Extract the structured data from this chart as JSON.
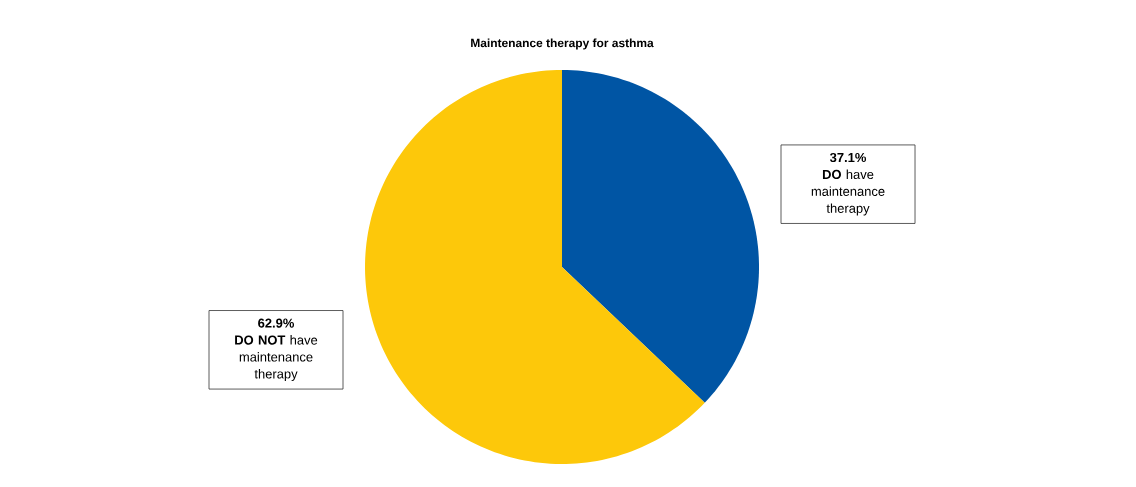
{
  "chart_data": {
    "type": "pie",
    "title": "Maintenance therapy for asthma",
    "categories": [
      "**DO** have maintenance therapy",
      "**DO NOT** have maintenance therapy"
    ],
    "values": [
      37.1,
      62.9
    ],
    "value_labels": [
      "37.1%",
      "62.9%"
    ],
    "colors": [
      "#0055a4",
      "#fdc80a"
    ]
  }
}
